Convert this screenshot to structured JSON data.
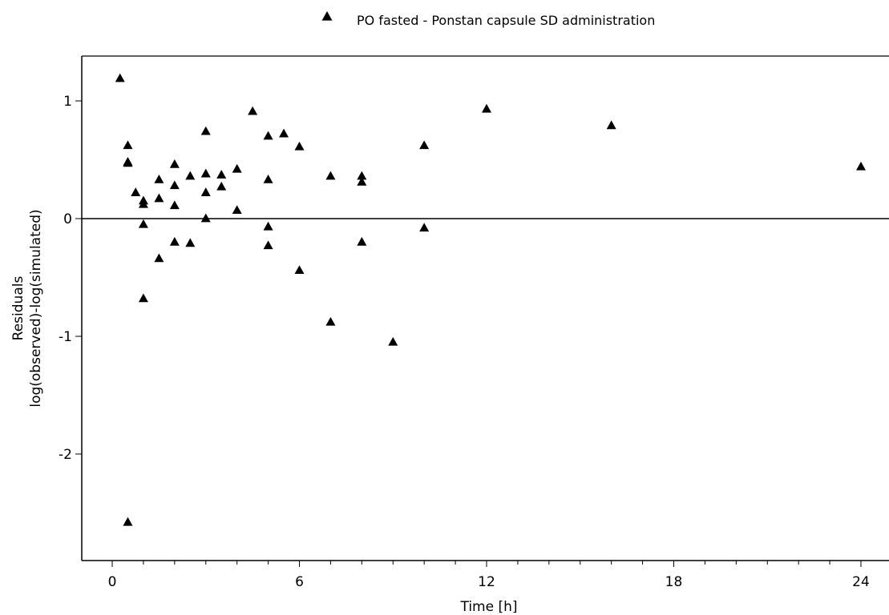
{
  "chart_data": {
    "type": "scatter",
    "title": "",
    "xlabel": "Time [h]",
    "ylabel_lines": [
      "Residuals",
      "log(observed)-log(simulated)"
    ],
    "xlim": [
      -1,
      25
    ],
    "ylim": [
      -2.9,
      1.4
    ],
    "xticks": [
      0,
      6,
      12,
      18,
      24
    ],
    "xtick_labels": [
      "0",
      "6",
      "12",
      "18",
      "24"
    ],
    "yticks": [
      1,
      0,
      -1,
      -2
    ],
    "ytick_labels": [
      "1",
      "0",
      "-1",
      "-2"
    ],
    "x_minor_step": 1,
    "reference_line_y": 0,
    "grid": false,
    "legend_position": "top-center",
    "marker_color": "#000000",
    "series": [
      {
        "name": "PO fasted - Ponstan capsule SD administration",
        "marker": "triangle",
        "points": [
          [
            0.25,
            1.19
          ],
          [
            0.5,
            0.62
          ],
          [
            0.5,
            0.48
          ],
          [
            0.5,
            0.47
          ],
          [
            0.5,
            -2.58
          ],
          [
            0.75,
            0.22
          ],
          [
            1.0,
            0.15
          ],
          [
            1.0,
            0.12
          ],
          [
            1.0,
            -0.05
          ],
          [
            1.0,
            -0.68
          ],
          [
            1.5,
            0.33
          ],
          [
            1.5,
            0.17
          ],
          [
            1.5,
            -0.34
          ],
          [
            2.0,
            0.46
          ],
          [
            2.0,
            0.28
          ],
          [
            2.0,
            0.11
          ],
          [
            2.0,
            -0.2
          ],
          [
            2.5,
            0.36
          ],
          [
            2.5,
            -0.21
          ],
          [
            3.0,
            0.74
          ],
          [
            3.0,
            0.38
          ],
          [
            3.0,
            0.22
          ],
          [
            3.0,
            0.0
          ],
          [
            3.5,
            0.37
          ],
          [
            3.5,
            0.27
          ],
          [
            4.0,
            0.42
          ],
          [
            4.0,
            0.07
          ],
          [
            4.5,
            0.91
          ],
          [
            5.0,
            0.7
          ],
          [
            5.0,
            0.33
          ],
          [
            5.0,
            -0.07
          ],
          [
            5.0,
            -0.23
          ],
          [
            5.5,
            0.72
          ],
          [
            6.0,
            0.61
          ],
          [
            6.0,
            -0.44
          ],
          [
            7.0,
            0.36
          ],
          [
            7.0,
            -0.88
          ],
          [
            8.0,
            0.36
          ],
          [
            8.0,
            0.31
          ],
          [
            8.0,
            -0.2
          ],
          [
            9.0,
            -1.05
          ],
          [
            10.0,
            0.62
          ],
          [
            10.0,
            -0.08
          ],
          [
            12.0,
            0.93
          ],
          [
            16.0,
            0.79
          ],
          [
            24.0,
            0.44
          ]
        ]
      }
    ]
  }
}
